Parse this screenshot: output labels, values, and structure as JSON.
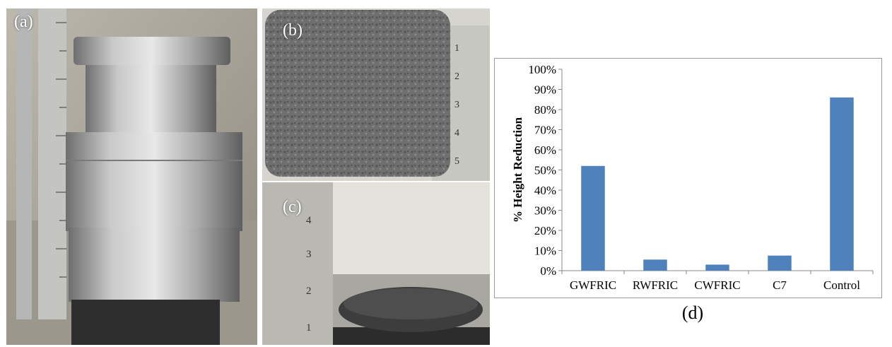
{
  "panels": {
    "a": {
      "label": "(a)"
    },
    "b": {
      "label": "(b)"
    },
    "c": {
      "label": "(c)"
    },
    "d": {
      "label": "(d)"
    }
  },
  "ruler_b_marks": [
    "1",
    "2",
    "3",
    "4",
    "5"
  ],
  "ruler_c_marks": [
    "1",
    "2",
    "3",
    "4"
  ],
  "colors": {
    "bar": "#4f81bd",
    "axis": "#888888",
    "frame": "#9a9a9a"
  },
  "chart_data": {
    "type": "bar",
    "categories": [
      "GWFRIC",
      "RWFRIC",
      "CWFRIC",
      "C7",
      "Control"
    ],
    "values": [
      52,
      5.5,
      3,
      7.5,
      86
    ],
    "title": "",
    "xlabel": "",
    "ylabel": "% Height Reduction",
    "ylim": [
      0,
      100
    ],
    "yticks": [
      "0%",
      "10%",
      "20%",
      "30%",
      "40%",
      "50%",
      "60%",
      "70%",
      "80%",
      "90%",
      "100%"
    ],
    "grid": false,
    "legend": "none"
  }
}
